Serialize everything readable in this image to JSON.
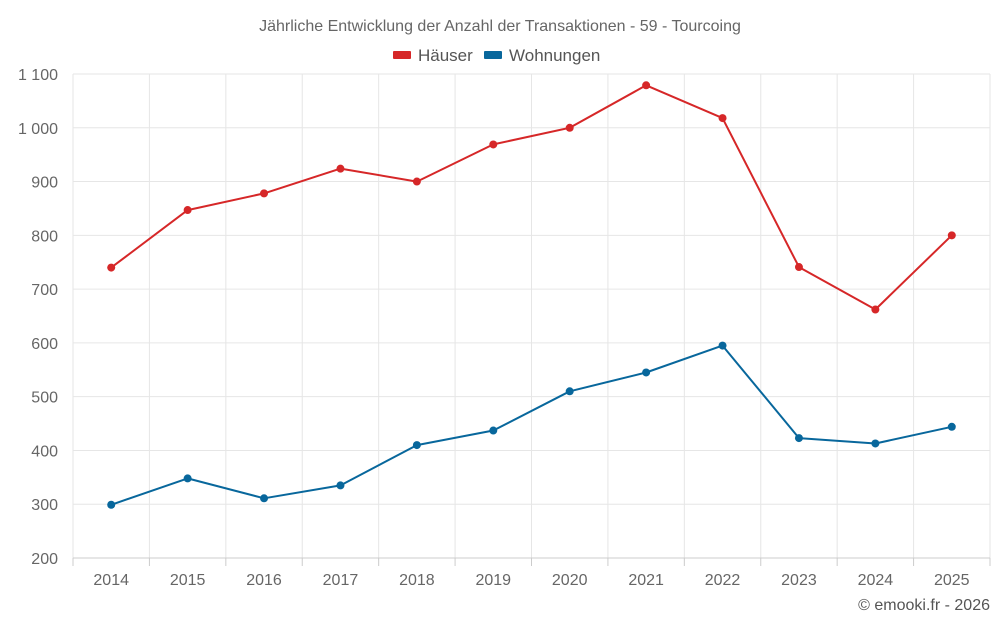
{
  "chart_data": {
    "type": "line",
    "title": "Jährliche Entwicklung der Anzahl der Transaktionen - 59 - Tourcoing",
    "xlabel": "",
    "ylabel": "",
    "categories": [
      "2014",
      "2015",
      "2016",
      "2017",
      "2018",
      "2019",
      "2020",
      "2021",
      "2022",
      "2023",
      "2024",
      "2025"
    ],
    "ylim": [
      200,
      1100
    ],
    "yticks": [
      200,
      300,
      400,
      500,
      600,
      700,
      800,
      900,
      1000,
      1100
    ],
    "ytick_labels": [
      "200",
      "300",
      "400",
      "500",
      "600",
      "700",
      "800",
      "900",
      "1 000",
      "1 100"
    ],
    "grid": true,
    "legend_position": "top-center",
    "series": [
      {
        "name": "Häuser",
        "color": "#d62728",
        "values": [
          740,
          847,
          878,
          924,
          900,
          969,
          1000,
          1079,
          1018,
          741,
          662,
          800
        ]
      },
      {
        "name": "Wohnungen",
        "color": "#08679c",
        "values": [
          299,
          348,
          311,
          335,
          410,
          437,
          510,
          545,
          595,
          423,
          413,
          444
        ]
      }
    ],
    "credit": "© emooki.fr - 2026"
  }
}
